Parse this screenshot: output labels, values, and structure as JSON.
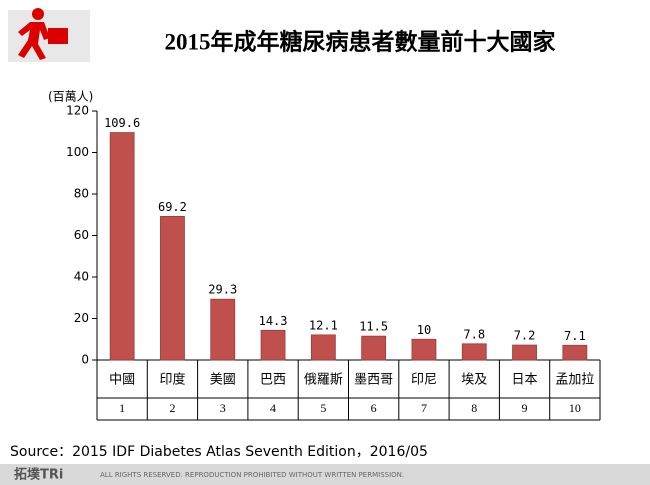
{
  "chart_data": {
    "type": "bar",
    "title": "2015年成年糖尿病患者數量前十大國家",
    "y_label": "(百萬人)",
    "categories": [
      "中國",
      "印度",
      "美國",
      "巴西",
      "俄羅斯",
      "墨西哥",
      "印尼",
      "埃及",
      "日本",
      "孟加拉"
    ],
    "ranks": [
      1,
      2,
      3,
      4,
      5,
      6,
      7,
      8,
      9,
      10
    ],
    "values": [
      109.6,
      69.2,
      29.3,
      14.3,
      12.1,
      11.5,
      10,
      7.8,
      7.2,
      7.1
    ],
    "color": "#c0504d",
    "ylim": [
      0,
      120
    ],
    "yticks": [
      0,
      20,
      40,
      60,
      80,
      100,
      120
    ],
    "source": "Source：2015 IDF Diabetes Atlas Seventh Edition，2016/05"
  },
  "footer": {
    "logo": "拓墣TRi",
    "notice": "ALL RIGHTS RESERVED. REPRODUCTION PROHIBITED WITHOUT WRITTEN PERMISSION."
  }
}
